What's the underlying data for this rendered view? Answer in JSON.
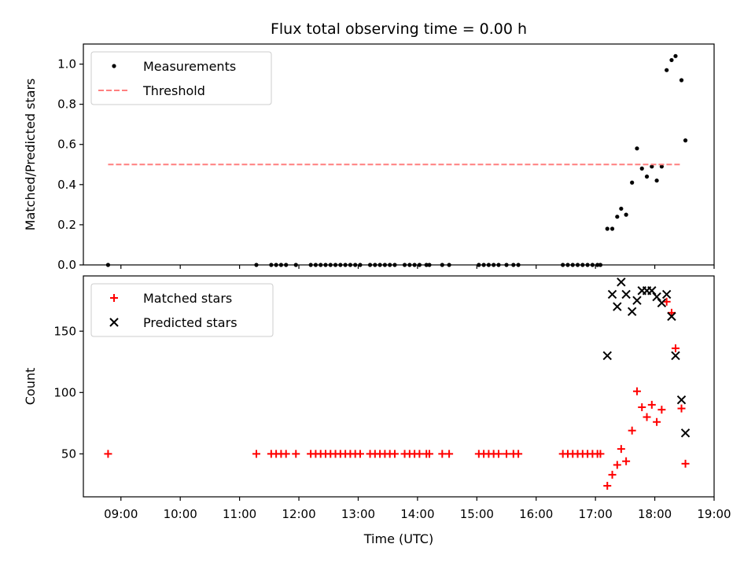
{
  "chart_data": {
    "type": "scatter",
    "title": "Flux total observing time = 0.00 h",
    "xlabel": "Time (UTC)",
    "x_ticks": [
      "09:00",
      "10:00",
      "11:00",
      "12:00",
      "13:00",
      "14:00",
      "15:00",
      "16:00",
      "17:00",
      "18:00",
      "19:00"
    ],
    "xlim": [
      "08:22",
      "19:00"
    ],
    "panels": [
      {
        "ylabel": "Matched/Predicted stars",
        "ylim": [
          0,
          1.1
        ],
        "y_ticks": [
          "0.0",
          "0.2",
          "0.4",
          "0.6",
          "0.8",
          "1.0"
        ],
        "legend_position": "top-left",
        "series": [
          {
            "name": "Measurements",
            "marker": "dot",
            "color": "#000000",
            "points": [
              [
                "08:47",
                0
              ],
              [
                "11:17",
                0
              ],
              [
                "11:32",
                0
              ],
              [
                "11:37",
                0
              ],
              [
                "11:42",
                0
              ],
              [
                "11:47",
                0
              ],
              [
                "11:57",
                0
              ],
              [
                "12:12",
                0
              ],
              [
                "12:17",
                0
              ],
              [
                "12:22",
                0
              ],
              [
                "12:27",
                0
              ],
              [
                "12:32",
                0
              ],
              [
                "12:37",
                0
              ],
              [
                "12:42",
                0
              ],
              [
                "12:47",
                0
              ],
              [
                "12:52",
                0
              ],
              [
                "12:57",
                0
              ],
              [
                "13:02",
                0
              ],
              [
                "13:12",
                0
              ],
              [
                "13:17",
                0
              ],
              [
                "13:22",
                0
              ],
              [
                "13:27",
                0
              ],
              [
                "13:32",
                0
              ],
              [
                "13:37",
                0
              ],
              [
                "13:47",
                0
              ],
              [
                "13:52",
                0
              ],
              [
                "13:57",
                0
              ],
              [
                "14:02",
                0
              ],
              [
                "14:09",
                0
              ],
              [
                "14:12",
                0
              ],
              [
                "14:25",
                0
              ],
              [
                "14:32",
                0
              ],
              [
                "15:02",
                0
              ],
              [
                "15:07",
                0
              ],
              [
                "15:12",
                0
              ],
              [
                "15:17",
                0
              ],
              [
                "15:22",
                0
              ],
              [
                "15:30",
                0
              ],
              [
                "15:37",
                0
              ],
              [
                "15:42",
                0
              ],
              [
                "16:27",
                0
              ],
              [
                "16:32",
                0
              ],
              [
                "16:37",
                0
              ],
              [
                "16:42",
                0
              ],
              [
                "16:47",
                0
              ],
              [
                "16:52",
                0
              ],
              [
                "16:57",
                0
              ],
              [
                "17:02",
                0
              ],
              [
                "17:05",
                0
              ],
              [
                "17:12",
                0.18
              ],
              [
                "17:17",
                0.18
              ],
              [
                "17:22",
                0.24
              ],
              [
                "17:26",
                0.28
              ],
              [
                "17:31",
                0.25
              ],
              [
                "17:37",
                0.41
              ],
              [
                "17:42",
                0.58
              ],
              [
                "17:47",
                0.48
              ],
              [
                "17:52",
                0.44
              ],
              [
                "17:57",
                0.49
              ],
              [
                "18:02",
                0.42
              ],
              [
                "18:07",
                0.49
              ],
              [
                "18:12",
                0.97
              ],
              [
                "18:17",
                1.02
              ],
              [
                "18:21",
                1.04
              ],
              [
                "18:27",
                0.92
              ],
              [
                "18:31",
                0.62
              ]
            ]
          },
          {
            "name": "Threshold",
            "marker": "dashed-line",
            "color": "#ff7f7f",
            "points": [
              [
                "08:47",
                0.5
              ],
              [
                "18:27",
                0.5
              ]
            ]
          }
        ]
      },
      {
        "ylabel": "Count",
        "ylim": [
          15,
          195
        ],
        "y_ticks": [
          "50",
          "100",
          "150"
        ],
        "legend_position": "top-left",
        "series": [
          {
            "name": "Matched stars",
            "marker": "plus",
            "color": "#ff0000",
            "points": [
              [
                "08:47",
                50
              ],
              [
                "11:17",
                50
              ],
              [
                "11:32",
                50
              ],
              [
                "11:37",
                50
              ],
              [
                "11:42",
                50
              ],
              [
                "11:47",
                50
              ],
              [
                "11:57",
                50
              ],
              [
                "12:12",
                50
              ],
              [
                "12:17",
                50
              ],
              [
                "12:22",
                50
              ],
              [
                "12:27",
                50
              ],
              [
                "12:32",
                50
              ],
              [
                "12:37",
                50
              ],
              [
                "12:42",
                50
              ],
              [
                "12:47",
                50
              ],
              [
                "12:52",
                50
              ],
              [
                "12:57",
                50
              ],
              [
                "13:02",
                50
              ],
              [
                "13:12",
                50
              ],
              [
                "13:17",
                50
              ],
              [
                "13:22",
                50
              ],
              [
                "13:27",
                50
              ],
              [
                "13:32",
                50
              ],
              [
                "13:37",
                50
              ],
              [
                "13:47",
                50
              ],
              [
                "13:52",
                50
              ],
              [
                "13:57",
                50
              ],
              [
                "14:02",
                50
              ],
              [
                "14:09",
                50
              ],
              [
                "14:12",
                50
              ],
              [
                "14:25",
                50
              ],
              [
                "14:32",
                50
              ],
              [
                "15:02",
                50
              ],
              [
                "15:07",
                50
              ],
              [
                "15:12",
                50
              ],
              [
                "15:17",
                50
              ],
              [
                "15:22",
                50
              ],
              [
                "15:30",
                50
              ],
              [
                "15:37",
                50
              ],
              [
                "15:42",
                50
              ],
              [
                "16:27",
                50
              ],
              [
                "16:32",
                50
              ],
              [
                "16:37",
                50
              ],
              [
                "16:42",
                50
              ],
              [
                "16:47",
                50
              ],
              [
                "16:52",
                50
              ],
              [
                "16:57",
                50
              ],
              [
                "17:02",
                50
              ],
              [
                "17:05",
                50
              ],
              [
                "17:12",
                24
              ],
              [
                "17:17",
                33
              ],
              [
                "17:22",
                41
              ],
              [
                "17:26",
                54
              ],
              [
                "17:31",
                44
              ],
              [
                "17:37",
                69
              ],
              [
                "17:42",
                101
              ],
              [
                "17:47",
                88
              ],
              [
                "17:52",
                80
              ],
              [
                "17:57",
                90
              ],
              [
                "18:02",
                76
              ],
              [
                "18:07",
                86
              ],
              [
                "18:12",
                174
              ],
              [
                "18:17",
                165
              ],
              [
                "18:21",
                136
              ],
              [
                "18:27",
                87
              ],
              [
                "18:31",
                42
              ]
            ]
          },
          {
            "name": "Predicted stars",
            "marker": "x",
            "color": "#000000",
            "points": [
              [
                "17:12",
                130
              ],
              [
                "17:17",
                180
              ],
              [
                "17:22",
                170
              ],
              [
                "17:26",
                190
              ],
              [
                "17:31",
                180
              ],
              [
                "17:37",
                166
              ],
              [
                "17:42",
                175
              ],
              [
                "17:47",
                183
              ],
              [
                "17:52",
                183
              ],
              [
                "17:57",
                183
              ],
              [
                "18:02",
                178
              ],
              [
                "18:07",
                173
              ],
              [
                "18:12",
                180
              ],
              [
                "18:17",
                162
              ],
              [
                "18:21",
                130
              ],
              [
                "18:27",
                94
              ],
              [
                "18:31",
                67
              ]
            ]
          }
        ]
      }
    ]
  }
}
